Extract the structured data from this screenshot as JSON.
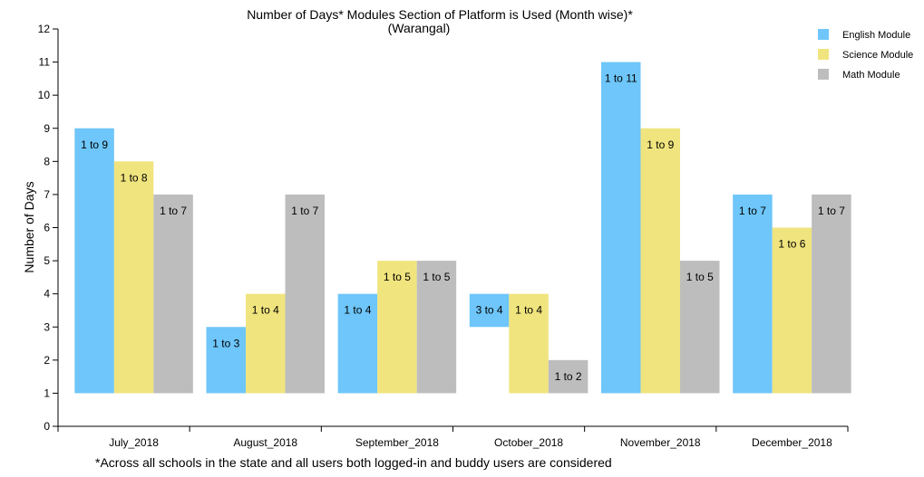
{
  "chart_data": {
    "type": "bar",
    "title": "Number of Days* Modules Section of Platform is Used (Month wise)*",
    "subtitle": "(Warangal)",
    "ylabel": "Number of Days",
    "xlabel": "",
    "ylim": [
      0,
      12
    ],
    "yticks": [
      0,
      1,
      2,
      3,
      4,
      5,
      6,
      7,
      8,
      9,
      10,
      11,
      12
    ],
    "legend_position": "top-right",
    "categories": [
      "July_2018",
      "August_2018",
      "September_2018",
      "October_2018",
      "November_2018",
      "December_2018"
    ],
    "series": [
      {
        "name": "English Module",
        "color": "#6ec6fa",
        "ranges": [
          [
            1,
            9
          ],
          [
            1,
            3
          ],
          [
            1,
            4
          ],
          [
            3,
            4
          ],
          [
            1,
            11
          ],
          [
            1,
            7
          ]
        ],
        "labels": [
          "1 to 9",
          "1 to 3",
          "1 to 4",
          "3 to 4",
          "1 to 11",
          "1 to 7"
        ]
      },
      {
        "name": "Science Module",
        "color": "#f0e47e",
        "ranges": [
          [
            1,
            8
          ],
          [
            1,
            4
          ],
          [
            1,
            5
          ],
          [
            1,
            4
          ],
          [
            1,
            9
          ],
          [
            1,
            6
          ]
        ],
        "labels": [
          "1 to 8",
          "1 to 4",
          "1 to 5",
          "1 to 4",
          "1 to 9",
          "1 to 6"
        ]
      },
      {
        "name": "Math Module",
        "color": "#bdbdbd",
        "ranges": [
          [
            1,
            7
          ],
          [
            1,
            7
          ],
          [
            1,
            5
          ],
          [
            1,
            2
          ],
          [
            1,
            5
          ],
          [
            1,
            7
          ]
        ],
        "labels": [
          "1 to 7",
          "1 to 7",
          "1 to 5",
          "1 to 2",
          "1 to 5",
          "1 to 7"
        ]
      }
    ],
    "footnote": "*Across all schools in the state and all users both logged-in and buddy users are considered"
  }
}
